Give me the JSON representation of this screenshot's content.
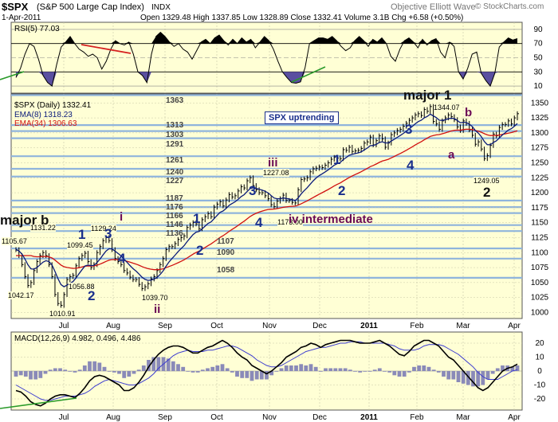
{
  "header": {
    "ticker": "$SPX",
    "name": "(S&P 500 Large Cap Index)",
    "exchange": "INDX",
    "date": "1-Apr-2011",
    "ohlc_text": "Open 1329.48   High 1337.85   Low 1328.89   Close 1332.41   Volume 3.1B   Chg +6.58 (+0.50%)",
    "source": "Objective Elliott Wave",
    "copyright": "© StockCharts.com"
  },
  "rsi": {
    "label": "RSI(5) 77.03",
    "levels": [
      90,
      70,
      50,
      30,
      10
    ],
    "ylim": [
      0,
      100
    ],
    "values": [
      22,
      35,
      55,
      70,
      66,
      48,
      25,
      15,
      10,
      40,
      65,
      72,
      80,
      70,
      62,
      58,
      52,
      55,
      50,
      34,
      45,
      62,
      74,
      70,
      68,
      72,
      55,
      30,
      25,
      15,
      55,
      80,
      86,
      80,
      72,
      66,
      70,
      62,
      58,
      48,
      60,
      72,
      76,
      70,
      78,
      82,
      74,
      68,
      76,
      70,
      78,
      72,
      76,
      64,
      72,
      80,
      74,
      62,
      45,
      30,
      22,
      15,
      14,
      16,
      36,
      70,
      74,
      78,
      78,
      76,
      80,
      74,
      66,
      60,
      64,
      74,
      80,
      74,
      66,
      76,
      72,
      78,
      70,
      52,
      45,
      62,
      74,
      78,
      72,
      64,
      76,
      68,
      74,
      77,
      58,
      50,
      72,
      66,
      30,
      20,
      35,
      55,
      58,
      28,
      18,
      10,
      28,
      65,
      72,
      78,
      75,
      77
    ]
  },
  "price": {
    "legend_symbol": "$SPX (Daily) 1332.41",
    "legend_ema8": "EMA(8) 1318.23",
    "legend_ema34": "EMA(34) 1306.63",
    "ylim": [
      990,
      1365
    ],
    "yticks": [
      1000,
      1025,
      1050,
      1075,
      1100,
      1125,
      1150,
      1175,
      1200,
      1225,
      1250,
      1275,
      1300,
      1325,
      1350
    ],
    "xticks": [
      "Jul",
      "Aug",
      "Sep",
      "Oct",
      "Nov",
      "Dec",
      "2011",
      "Feb",
      "Mar",
      "Apr"
    ],
    "closes": [
      1105,
      1095,
      1080,
      1060,
      1045,
      1050,
      1070,
      1085,
      1095,
      1100,
      1095,
      1080,
      1060,
      1030,
      1015,
      1012,
      1030,
      1055,
      1060,
      1062,
      1078,
      1090,
      1095,
      1099,
      1085,
      1075,
      1080,
      1100,
      1110,
      1120,
      1125,
      1120,
      1105,
      1090,
      1085,
      1080,
      1070,
      1066,
      1059,
      1055,
      1055,
      1047,
      1040,
      1043,
      1048,
      1056,
      1060,
      1070,
      1080,
      1090,
      1105,
      1110,
      1110,
      1115,
      1122,
      1125,
      1128,
      1142,
      1146,
      1150,
      1148,
      1140,
      1155,
      1160,
      1165,
      1160,
      1176,
      1181,
      1185,
      1178,
      1188,
      1197,
      1193,
      1195,
      1203,
      1210,
      1208,
      1220,
      1225,
      1212,
      1205,
      1200,
      1200,
      1195,
      1190,
      1180,
      1177,
      1186,
      1190,
      1196,
      1187,
      1187,
      1184,
      1183,
      1205,
      1222,
      1223,
      1225,
      1235,
      1240,
      1241,
      1243,
      1242,
      1246,
      1250,
      1256,
      1259,
      1258,
      1257,
      1272,
      1271,
      1276,
      1269,
      1270,
      1271,
      1274,
      1283,
      1285,
      1293,
      1280,
      1287,
      1295,
      1290,
      1276,
      1283,
      1297,
      1300,
      1304,
      1306,
      1311,
      1316,
      1321,
      1325,
      1330,
      1332,
      1329,
      1339,
      1336,
      1344,
      1319,
      1315,
      1306,
      1320,
      1325,
      1330,
      1327,
      1322,
      1310,
      1304,
      1320,
      1316,
      1305,
      1296,
      1281,
      1285,
      1273,
      1257,
      1262,
      1279,
      1298,
      1295,
      1309,
      1314,
      1314,
      1320,
      1315,
      1325,
      1332
    ],
    "annotations": {
      "price_labels": [
        "1105.67",
        "1131.22",
        "1099.45",
        "1129.24",
        "1042.17",
        "1010.91",
        "1056.88",
        "1039.70",
        "1227.08",
        "1173.00",
        "1344.07",
        "1249.05"
      ],
      "pivot_levels": [
        "1363",
        "1313",
        "1303",
        "1291",
        "1261",
        "1240",
        "1227",
        "1187",
        "1176",
        "1166",
        "1146",
        "1136",
        "1107",
        "1090",
        "1058"
      ],
      "uptrend_label": "SPX uptrending",
      "waves": [
        "major b",
        "major 1",
        "i",
        "ii",
        "iii",
        "iv intermediate",
        "1",
        "2",
        "3",
        "4",
        "1",
        "2",
        "3",
        "4",
        "1",
        "2",
        "3",
        "4",
        "a",
        "b",
        "2"
      ]
    }
  },
  "macd": {
    "label": "MACD(12,26,9) 4.982, 0.496, 4.486",
    "ylim": [
      -28,
      28
    ],
    "yticks": [
      20,
      10,
      0,
      -10,
      -20
    ],
    "macd_values": [
      -14,
      -15,
      -18,
      -22,
      -24,
      -25,
      -23,
      -20,
      -18,
      -17,
      -17,
      -18,
      -19,
      -16,
      -12,
      -7,
      -4,
      -3,
      -4,
      -6,
      -8,
      -10,
      -14,
      -14,
      -12,
      -8,
      -3,
      3,
      8,
      12,
      15,
      17,
      18,
      18,
      17,
      15,
      13,
      13,
      15,
      17,
      18,
      20,
      22,
      20,
      17,
      13,
      10,
      8,
      4,
      2,
      0,
      -2,
      0,
      3,
      6,
      10,
      12,
      14,
      17,
      18,
      20,
      19,
      17,
      19,
      20,
      21,
      22,
      22,
      22,
      21,
      20,
      20,
      20,
      21,
      22,
      20,
      18,
      15,
      12,
      11,
      14,
      18,
      20,
      22,
      22,
      20,
      18,
      14,
      10,
      8,
      4,
      0,
      -4,
      -8,
      -12,
      -14,
      -12,
      -8,
      -4,
      0,
      2,
      3,
      5
    ],
    "signal_values": [
      -10,
      -12,
      -14,
      -16,
      -18,
      -20,
      -21,
      -21,
      -20,
      -19,
      -18,
      -18,
      -18,
      -17,
      -16,
      -14,
      -11,
      -9,
      -7,
      -6,
      -7,
      -8,
      -9,
      -10,
      -10,
      -9,
      -7,
      -5,
      -2,
      2,
      5,
      8,
      11,
      13,
      14,
      15,
      14,
      14,
      14,
      15,
      15,
      16,
      17,
      18,
      18,
      17,
      15,
      13,
      11,
      8,
      6,
      4,
      3,
      3,
      4,
      6,
      8,
      10,
      12,
      14,
      15,
      16,
      17,
      17,
      18,
      19,
      20,
      20,
      21,
      21,
      21,
      20,
      20,
      20,
      20,
      20,
      19,
      18,
      16,
      15,
      15,
      15,
      16,
      18,
      19,
      19,
      19,
      18,
      16,
      14,
      12,
      9,
      6,
      3,
      -1,
      -4,
      -6,
      -6,
      -6,
      -4,
      -2,
      0,
      1
    ]
  }
}
